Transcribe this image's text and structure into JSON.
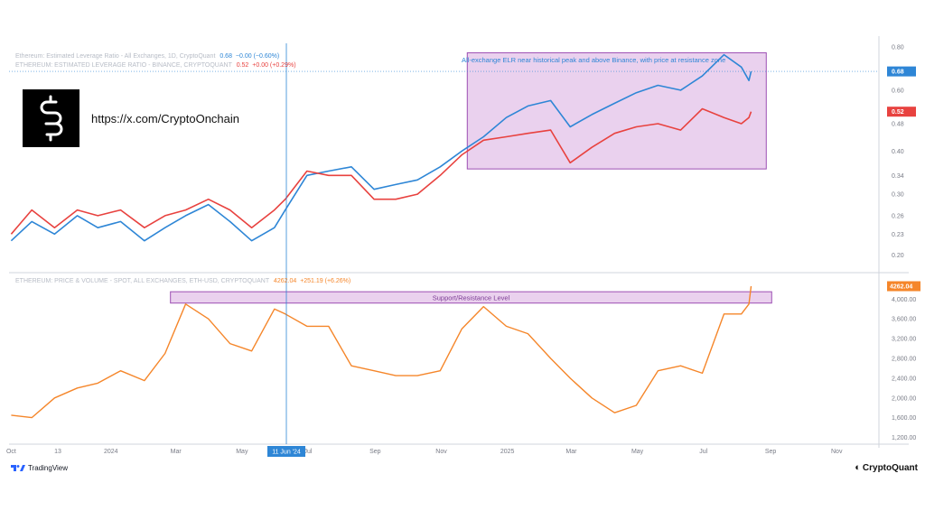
{
  "brand": {
    "url": "https://x.com/CryptoOnchain",
    "footer_left": "TradingView",
    "footer_right": "CryptoQuant"
  },
  "legends": {
    "elr_all": {
      "name": "Ethereum: Estimated Leverage Ratio - All Exchanges, 1D, CryptoQuant",
      "value": "0.68",
      "change": "−0.00 (−0.60%)",
      "color": "#2e86d6"
    },
    "elr_binance": {
      "name": "ETHEREUM: ESTIMATED LEVERAGE RATIO - BINANCE, CRYPTOQUANT",
      "value": "0.52",
      "change": "+0.00 (+0.29%)",
      "color": "#e8423f"
    },
    "price": {
      "name": "ETHEREUM: PRICE & VOLUME - SPOT, ALL EXCHANGES, ETH-USD, CRYPTOQUANT",
      "value": "4262.04",
      "change": "+251.19 (+6.26%)",
      "color": "#f5862a"
    }
  },
  "annotations": {
    "top": "All-exchange ELR near historical peak and above Binance, with price at resistance zone",
    "bottom": "Support/Resistance Level"
  },
  "chart_data": [
    {
      "type": "line",
      "panel": "top",
      "y_scale": "log",
      "ylim": [
        0.18,
        0.82
      ],
      "yticks": [
        "0.80",
        "0.68",
        "0.60",
        "0.52",
        "0.48",
        "0.40",
        "0.34",
        "0.30",
        "0.26",
        "0.23",
        "0.20"
      ],
      "last_value_labels": [
        "0.68",
        "0.52"
      ],
      "series": [
        {
          "name": "Ethereum: Estimated Leverage Ratio - All Exchanges",
          "color": "#2e86d6",
          "x": [
            "2023-10-01",
            "2023-10-20",
            "2023-11-10",
            "2023-12-01",
            "2023-12-20",
            "2024-01-10",
            "2024-02-01",
            "2024-02-20",
            "2024-03-10",
            "2024-03-31",
            "2024-04-20",
            "2024-05-10",
            "2024-05-31",
            "2024-06-10",
            "2024-06-30",
            "2024-07-20",
            "2024-08-10",
            "2024-08-31",
            "2024-09-20",
            "2024-10-10",
            "2024-10-31",
            "2024-11-20",
            "2024-12-10",
            "2024-12-31",
            "2025-01-20",
            "2025-02-10",
            "2025-02-28",
            "2025-03-20",
            "2025-04-10",
            "2025-04-30",
            "2025-05-20",
            "2025-06-10",
            "2025-06-30",
            "2025-07-20",
            "2025-08-05",
            "2025-08-12",
            "2025-08-14"
          ],
          "values": [
            0.22,
            0.25,
            0.23,
            0.26,
            0.24,
            0.25,
            0.22,
            0.24,
            0.26,
            0.28,
            0.25,
            0.22,
            0.24,
            0.27,
            0.34,
            0.35,
            0.36,
            0.31,
            0.32,
            0.33,
            0.36,
            0.4,
            0.44,
            0.5,
            0.54,
            0.56,
            0.47,
            0.51,
            0.55,
            0.59,
            0.62,
            0.6,
            0.66,
            0.76,
            0.7,
            0.64,
            0.68
          ]
        },
        {
          "name": "ETHEREUM: ESTIMATED LEVERAGE RATIO - BINANCE",
          "color": "#e8423f",
          "x": [
            "2023-10-01",
            "2023-10-20",
            "2023-11-10",
            "2023-12-01",
            "2023-12-20",
            "2024-01-10",
            "2024-02-01",
            "2024-02-20",
            "2024-03-10",
            "2024-03-31",
            "2024-04-20",
            "2024-05-10",
            "2024-05-31",
            "2024-06-10",
            "2024-06-30",
            "2024-07-20",
            "2024-08-10",
            "2024-08-31",
            "2024-09-20",
            "2024-10-10",
            "2024-10-31",
            "2024-11-20",
            "2024-12-10",
            "2024-12-31",
            "2025-01-20",
            "2025-02-10",
            "2025-02-28",
            "2025-03-20",
            "2025-04-10",
            "2025-04-30",
            "2025-05-20",
            "2025-06-10",
            "2025-06-30",
            "2025-07-20",
            "2025-08-05",
            "2025-08-12",
            "2025-08-14"
          ],
          "values": [
            0.23,
            0.27,
            0.24,
            0.27,
            0.26,
            0.27,
            0.24,
            0.26,
            0.27,
            0.29,
            0.27,
            0.24,
            0.27,
            0.29,
            0.35,
            0.34,
            0.34,
            0.29,
            0.29,
            0.3,
            0.34,
            0.39,
            0.43,
            0.44,
            0.45,
            0.46,
            0.37,
            0.41,
            0.45,
            0.47,
            0.48,
            0.46,
            0.53,
            0.5,
            0.48,
            0.5,
            0.52
          ]
        }
      ]
    },
    {
      "type": "line",
      "panel": "bottom",
      "ylim": [
        1100,
        4500
      ],
      "yticks": [
        "4,000.00",
        "3,600.00",
        "3,200.00",
        "2,800.00",
        "2,400.00",
        "2,000.00",
        "1,600.00",
        "1,200.00"
      ],
      "last_value_label": "4262.04",
      "series": [
        {
          "name": "ETHEREUM: PRICE & VOLUME - SPOT, ALL EXCHANGES, ETH-USD",
          "color": "#f5862a",
          "x": [
            "2023-10-01",
            "2023-10-20",
            "2023-11-10",
            "2023-12-01",
            "2023-12-20",
            "2024-01-10",
            "2024-02-01",
            "2024-02-20",
            "2024-03-10",
            "2024-03-31",
            "2024-04-20",
            "2024-05-10",
            "2024-05-31",
            "2024-06-10",
            "2024-06-30",
            "2024-07-20",
            "2024-08-10",
            "2024-08-31",
            "2024-09-20",
            "2024-10-10",
            "2024-10-31",
            "2024-11-20",
            "2024-12-10",
            "2024-12-31",
            "2025-01-20",
            "2025-02-10",
            "2025-02-28",
            "2025-03-20",
            "2025-04-10",
            "2025-04-30",
            "2025-05-20",
            "2025-06-10",
            "2025-06-30",
            "2025-07-20",
            "2025-08-05",
            "2025-08-12",
            "2025-08-14"
          ],
          "values": [
            1650,
            1600,
            2000,
            2200,
            2300,
            2550,
            2350,
            2900,
            3900,
            3600,
            3100,
            2950,
            3800,
            3700,
            3450,
            3450,
            2650,
            2550,
            2450,
            2450,
            2550,
            3400,
            3850,
            3450,
            3300,
            2800,
            2400,
            2000,
            1700,
            1850,
            2550,
            2650,
            2500,
            3700,
            3700,
            3900,
            4262
          ]
        }
      ]
    }
  ],
  "x_axis": {
    "ticks": [
      "Oct",
      "13",
      "2024",
      "Mar",
      "May",
      "Jul",
      "Sep",
      "Nov",
      "2025",
      "Mar",
      "May",
      "Jul",
      "Sep",
      "Nov"
    ],
    "crosshair_label": "11 Jun '24"
  }
}
